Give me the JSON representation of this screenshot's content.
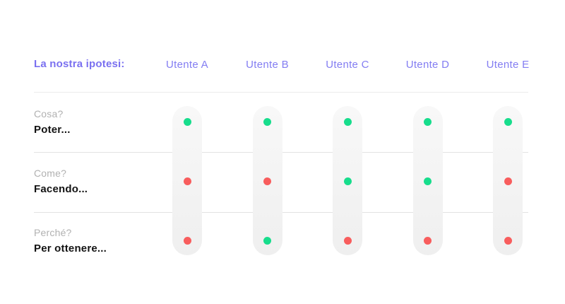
{
  "header": {
    "row_label": "La nostra ipotesi:",
    "columns": [
      "Utente A",
      "Utente B",
      "Utente C",
      "Utente D",
      "Utente E"
    ]
  },
  "rows": [
    {
      "question": "Cosa?",
      "answer": "Poter...",
      "dots": [
        "green",
        "green",
        "green",
        "green",
        "green"
      ]
    },
    {
      "question": "Come?",
      "answer": "Facendo...",
      "dots": [
        "red",
        "red",
        "green",
        "green",
        "red"
      ]
    },
    {
      "question": "Perché?",
      "answer": "Per ottenere...",
      "dots": [
        "red",
        "green",
        "red",
        "red",
        "red"
      ]
    }
  ],
  "colors": {
    "dot_green": "#17dd8c",
    "dot_red": "#f85d5d",
    "accent_purple": "#7a70f0",
    "column_header_purple": "#837df2",
    "question_gray": "#b1b1b1",
    "answer_black": "#131313",
    "pill_gray": "#f2f2f2"
  }
}
